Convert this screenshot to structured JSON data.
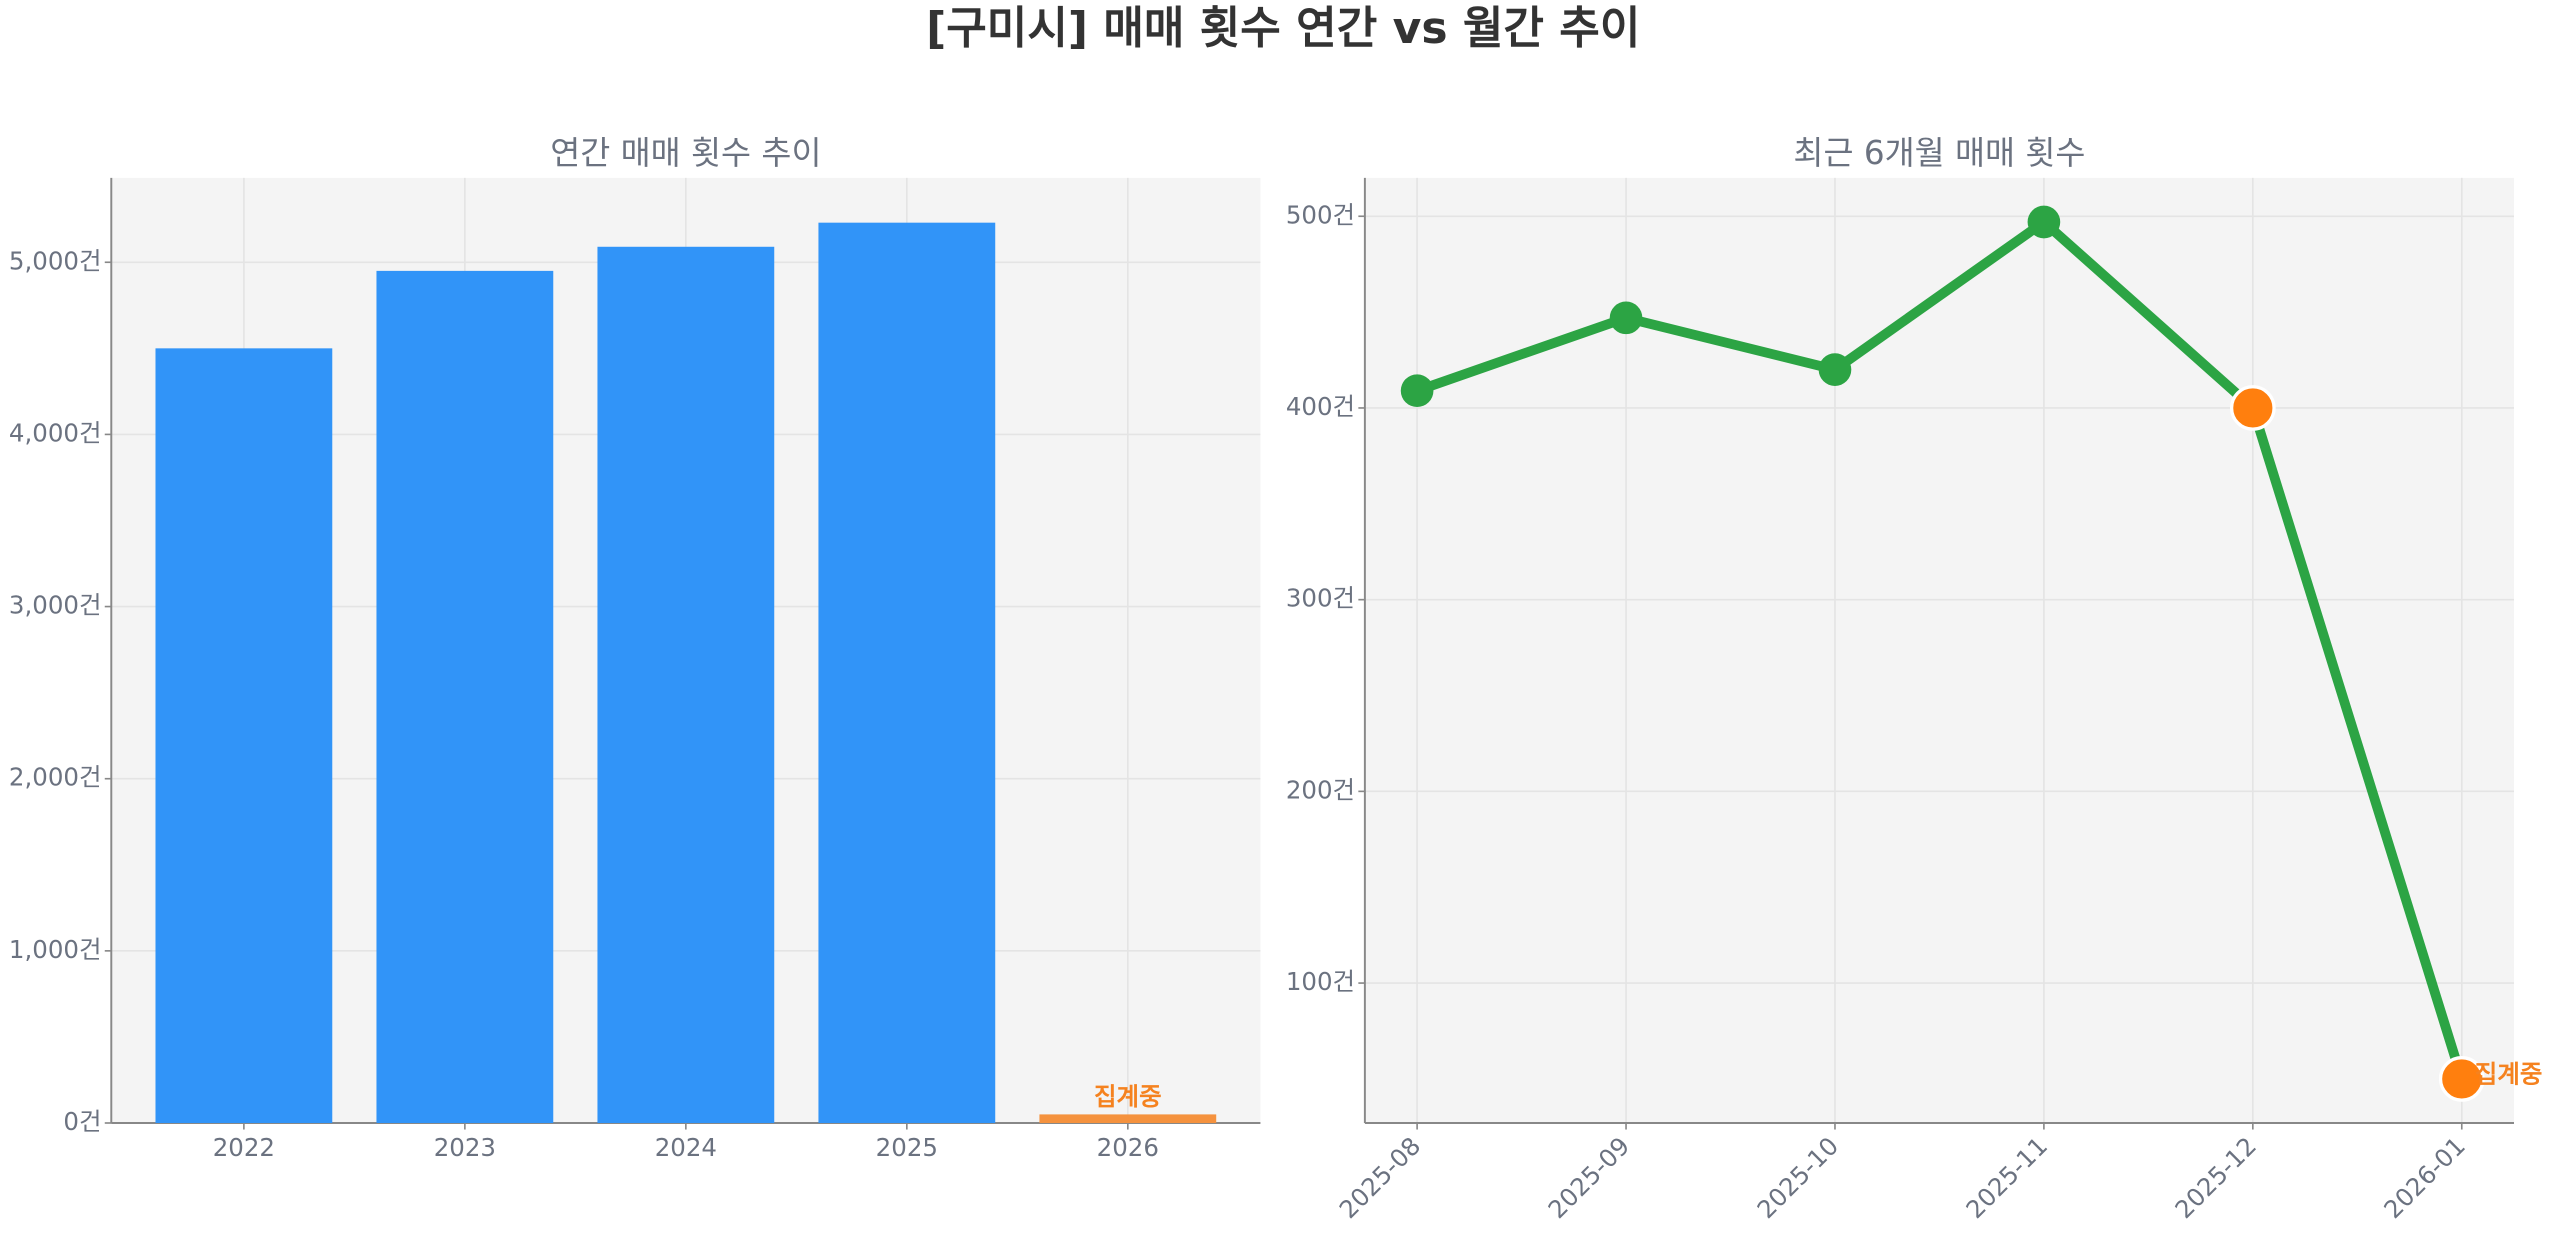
{
  "title": "[구미시] 매매 횟수 연간 vs 월간 추이",
  "chart_data": [
    {
      "type": "bar",
      "title": "연간 매매 횟수 추이",
      "categories": [
        "2022",
        "2023",
        "2024",
        "2025",
        "2026"
      ],
      "values": [
        4500,
        4950,
        5090,
        5230,
        50
      ],
      "colors": [
        "#3194f8",
        "#3194f8",
        "#3194f8",
        "#3194f8",
        "#f5923e"
      ],
      "annotations": [
        {
          "text": "집계중",
          "category": "2026",
          "color": "#f5821f"
        }
      ],
      "ylim": [
        0,
        5490
      ],
      "yticks": [
        {
          "value": 0,
          "label": "0건"
        },
        {
          "value": 1000,
          "label": "1,000건"
        },
        {
          "value": 2000,
          "label": "2,000건"
        },
        {
          "value": 3000,
          "label": "3,000건"
        },
        {
          "value": 4000,
          "label": "4,000건"
        },
        {
          "value": 5000,
          "label": "5,000건"
        }
      ],
      "grid": true
    },
    {
      "type": "line",
      "title": "최근 6개월 매매 횟수",
      "categories": [
        "2025-08",
        "2025-09",
        "2025-10",
        "2025-11",
        "2025-12",
        "2026-01"
      ],
      "values": [
        409,
        447,
        420,
        497,
        400,
        50
      ],
      "color": "#2ca444",
      "marker_colors": [
        "#2ca444",
        "#2ca444",
        "#2ca444",
        "#2ca444",
        "#ff7f0e",
        "#ff7f0e"
      ],
      "annotations": [
        {
          "text": "집계중",
          "category": "2026-01",
          "color": "#f5821f"
        }
      ],
      "ylim": [
        27,
        520
      ],
      "yticks": [
        {
          "value": 100,
          "label": "100건"
        },
        {
          "value": 200,
          "label": "200건"
        },
        {
          "value": 300,
          "label": "300건"
        },
        {
          "value": 400,
          "label": "400건"
        },
        {
          "value": 500,
          "label": "500건"
        }
      ],
      "grid": true
    }
  ]
}
